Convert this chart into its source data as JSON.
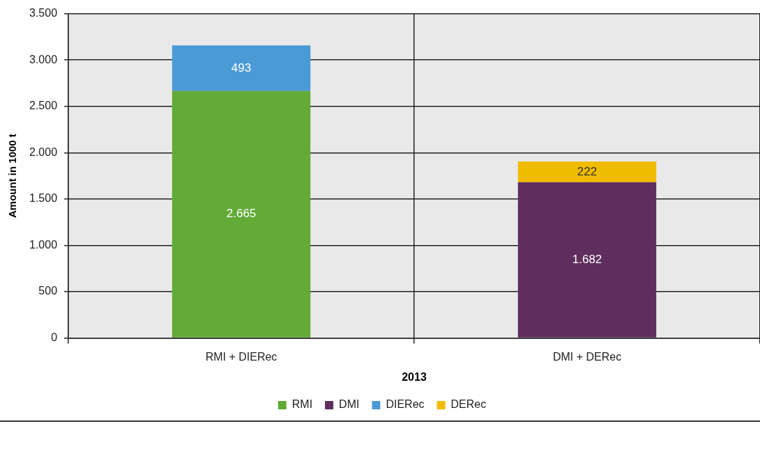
{
  "chart_data": {
    "type": "bar",
    "stacked": true,
    "xlabel": "2013",
    "ylabel": "Amount in 1000 t",
    "categories": [
      "RMI + DIERec",
      "DMI + DERec"
    ],
    "series": [
      {
        "name": "RMI",
        "color": "#62ab37",
        "values": [
          2665,
          null
        ],
        "value_labels": [
          "2.665",
          null
        ]
      },
      {
        "name": "DMI",
        "color": "#5f2d5e",
        "values": [
          null,
          1682
        ],
        "value_labels": [
          null,
          "1.682"
        ]
      },
      {
        "name": "DIERec",
        "color": "#4a9ad6",
        "values": [
          493,
          null
        ],
        "value_labels": [
          "493",
          null
        ]
      },
      {
        "name": "DERec",
        "color": "#f0bc00",
        "values": [
          null,
          222
        ],
        "value_labels": [
          null,
          "222"
        ]
      }
    ],
    "ylim": [
      0,
      3500
    ],
    "yticks": [
      {
        "value": 0,
        "label": "0"
      },
      {
        "value": 500,
        "label": "500"
      },
      {
        "value": 1000,
        "label": "1.000"
      },
      {
        "value": 1500,
        "label": "1.500"
      },
      {
        "value": 2000,
        "label": "2.000"
      },
      {
        "value": 2500,
        "label": "2.500"
      },
      {
        "value": 3000,
        "label": "3.000"
      },
      {
        "value": 3500,
        "label": "3.500"
      }
    ],
    "grid": true,
    "legend": "bottom"
  }
}
